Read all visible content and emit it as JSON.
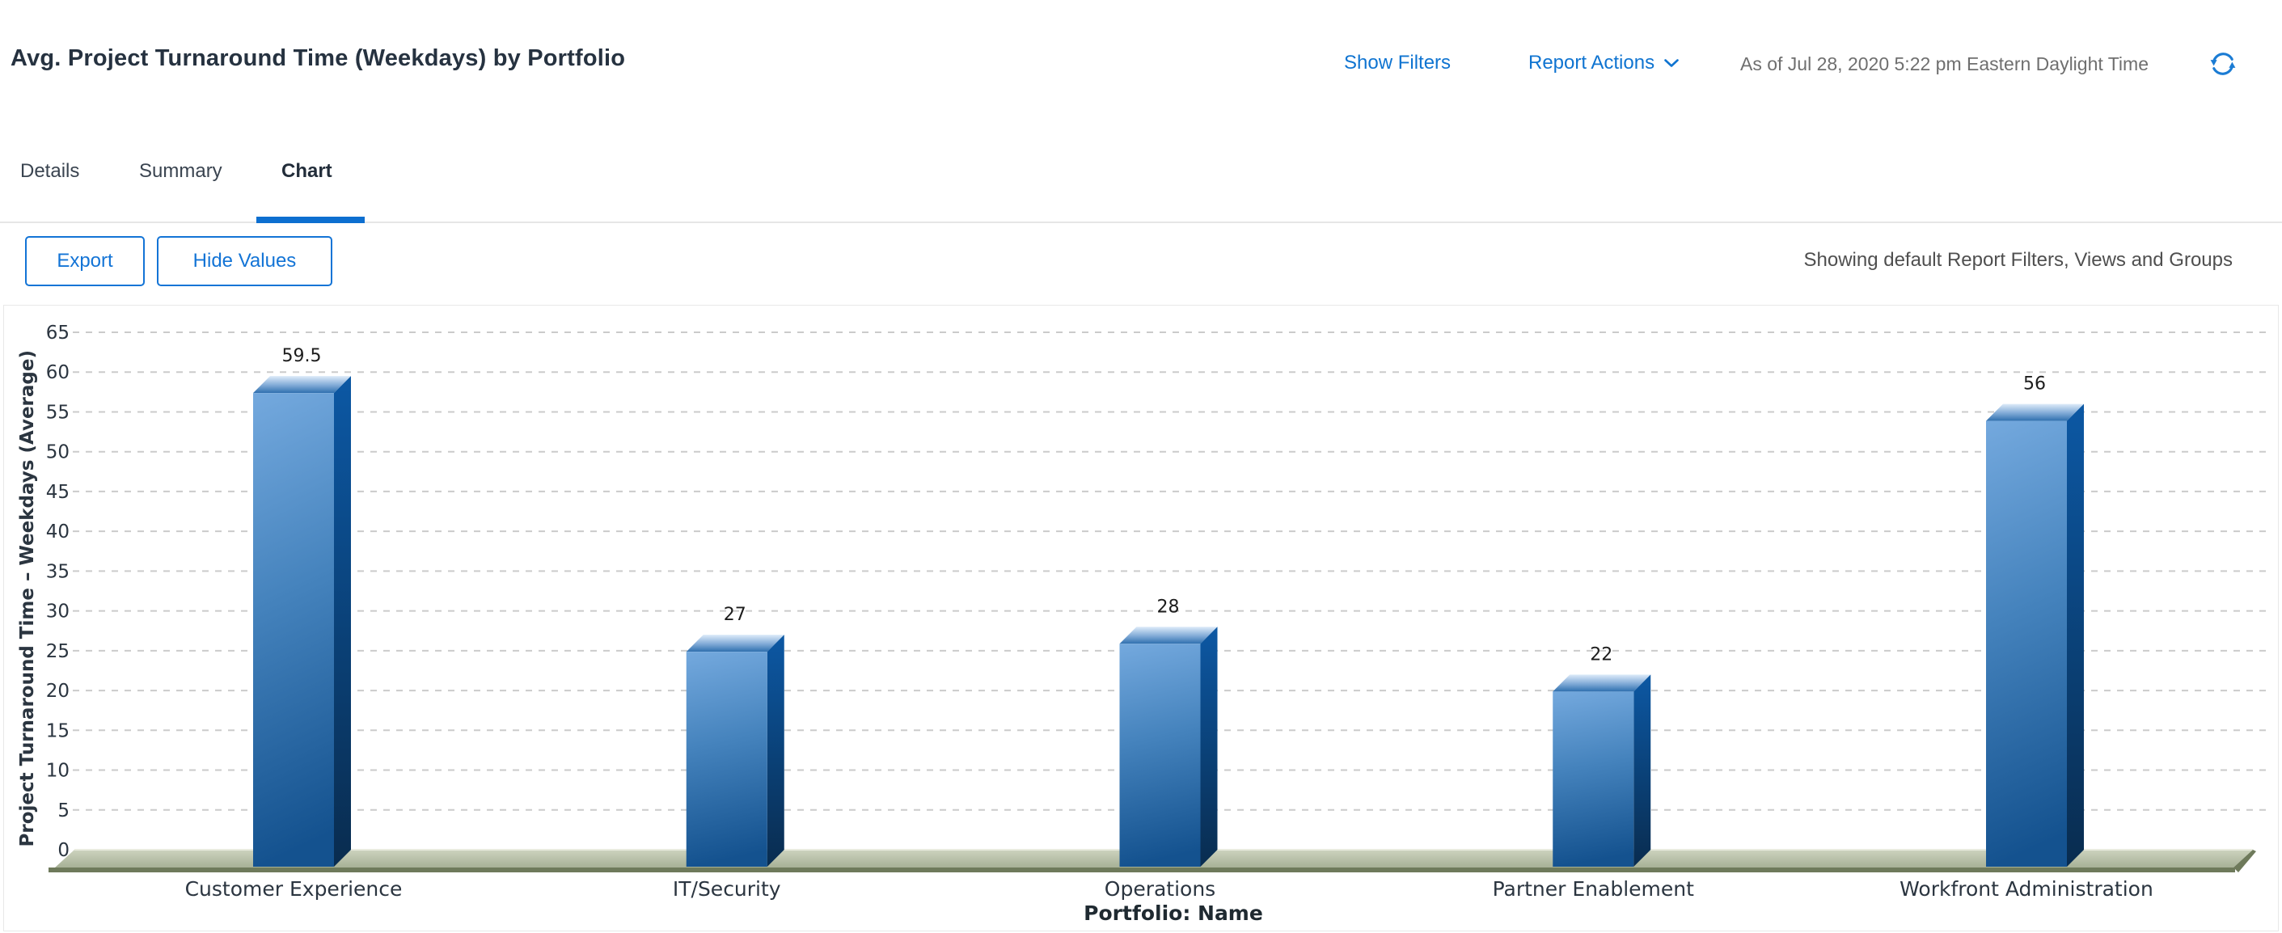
{
  "header": {
    "title": "Avg. Project Turnaround Time (Weekdays) by Portfolio",
    "show_filters_label": "Show Filters",
    "report_actions_label": "Report Actions",
    "as_of": "As of Jul 28, 2020 5:22 pm Eastern Daylight Time",
    "icons": [
      "chevron-down-icon",
      "refresh-icon"
    ]
  },
  "tabs": [
    {
      "label": "Details",
      "active": false
    },
    {
      "label": "Summary",
      "active": false
    },
    {
      "label": "Chart",
      "active": true
    }
  ],
  "toolbar": {
    "export_label": "Export",
    "hide_values_label": "Hide Values",
    "filters_note": "Showing default Report Filters, Views and Groups"
  },
  "chart_data": {
    "type": "bar",
    "style": "3d-column",
    "categories": [
      "Customer Experience",
      "IT/Security",
      "Operations",
      "Partner Enablement",
      "Workfront Administration"
    ],
    "values": [
      59.5,
      27,
      28,
      22,
      56
    ],
    "value_labels": [
      "59.5",
      "27",
      "28",
      "22",
      "56"
    ],
    "title": "",
    "xlabel": "Portfolio: Name",
    "ylabel": "Project Turnaround Time – Weekdays (Average)",
    "ylim": [
      0,
      65
    ],
    "ytick_step": 5,
    "grid": "horizontal-dashed",
    "legend": "none",
    "colors": {
      "bar_front_top": "#74a9de",
      "bar_front_bottom": "#14528f",
      "bar_side_top": "#0c58a4",
      "bar_side_bottom": "#092c4f",
      "bar_top_back": "#ddebf9",
      "bar_top_front": "#2e6fae",
      "floor_light": "#cdd3bf",
      "floor_dark": "#a7b196",
      "floor_edge": "#6e7a5b",
      "gridline": "#cbcbcb"
    }
  },
  "colors": {
    "accent_blue": "#0f74d1",
    "tab_underline": "#0d6fd0",
    "title_text": "#263240",
    "muted_text": "#6f6f6f",
    "note_text": "#4f4f4f"
  }
}
